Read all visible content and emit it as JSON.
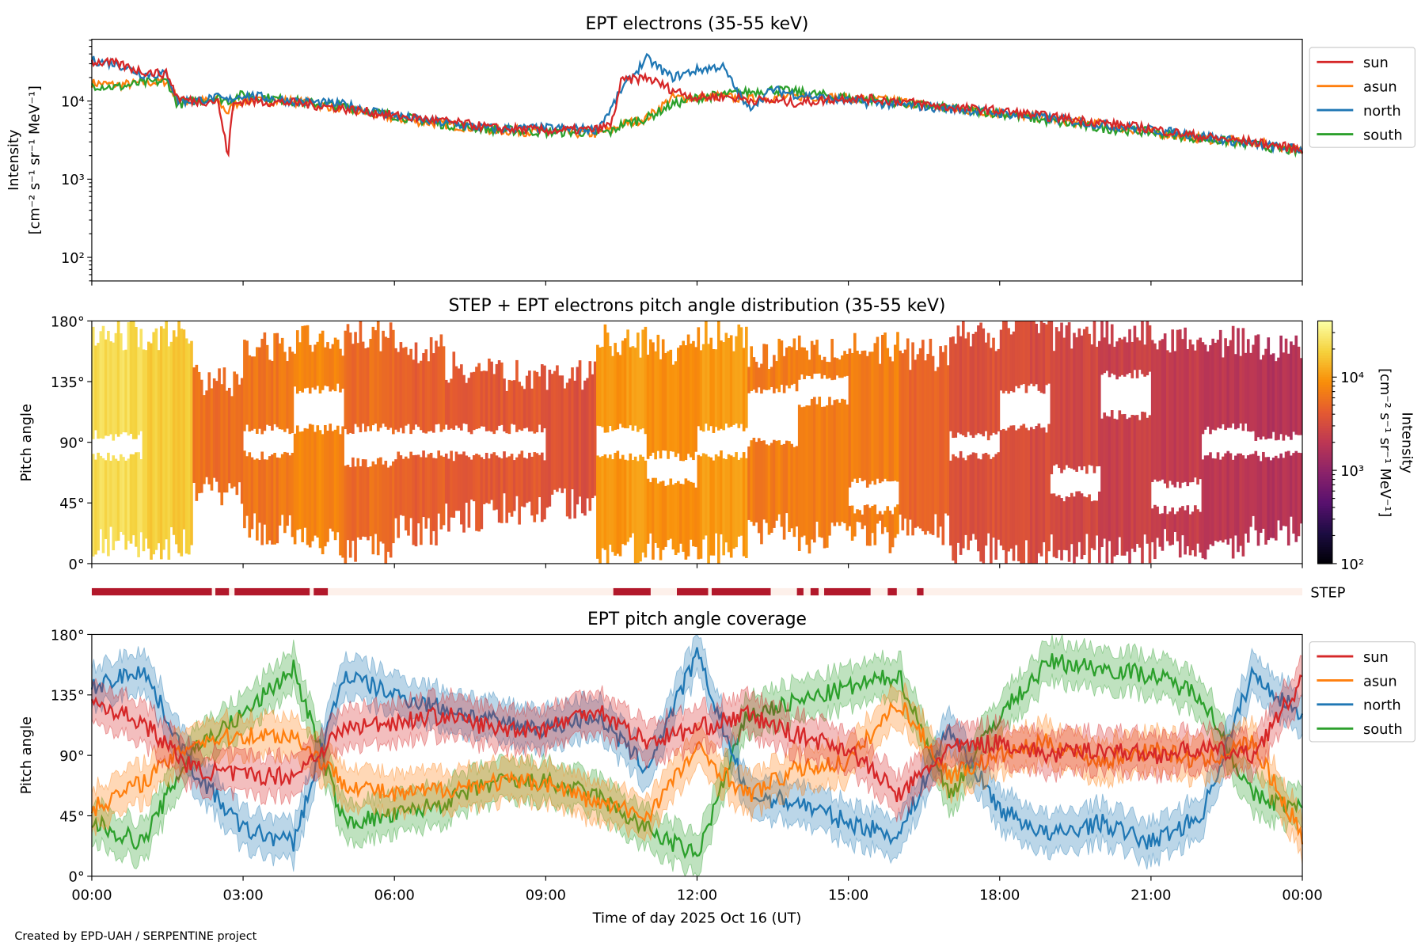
{
  "footer": "Created by EPD-UAH / SERPENTINE project",
  "colors": {
    "sun": "#d62728",
    "asun": "#ff7f0e",
    "north": "#1f77b4",
    "south": "#2ca02c",
    "step_on": "#b2182b",
    "step_off": "#fdf0ea",
    "colormap": "inferno"
  },
  "chart_data": [
    {
      "type": "line",
      "title": "EPT electrons (35-55 keV)",
      "ylabel": [
        "Intensity",
        "[cm⁻² s⁻¹ sr⁻¹ MeV⁻¹]"
      ],
      "yscale": "log",
      "ylim": [
        50,
        62000
      ],
      "yticks": [
        "10²",
        "10³",
        "10⁴"
      ],
      "xlim_hours": [
        0,
        24
      ],
      "legend": "outside-right",
      "x_hours": [
        0,
        0.5,
        1,
        1.5,
        1.7,
        2,
        2.5,
        2.7,
        2.8,
        3,
        4,
        5,
        6,
        7,
        8,
        9,
        10,
        10.3,
        10.5,
        11,
        11.5,
        12,
        12.5,
        13,
        13.5,
        14,
        15,
        16,
        17,
        18,
        19,
        20,
        21,
        22,
        23,
        24
      ],
      "series": [
        {
          "name": "sun",
          "values": [
            32000,
            30000,
            24000,
            22000,
            11000,
            10000,
            10000,
            2000,
            9000,
            10000,
            9500,
            8000,
            6500,
            5500,
            4500,
            4200,
            4300,
            5000,
            18000,
            20000,
            14000,
            11000,
            11500,
            10500,
            10000,
            9500,
            11000,
            10000,
            8300,
            7500,
            6300,
            5300,
            4400,
            3500,
            3000,
            2400
          ]
        },
        {
          "name": "asun",
          "values": [
            17000,
            16000,
            17000,
            18000,
            10000,
            10000,
            10000,
            7000,
            9000,
            10000,
            10000,
            8000,
            6000,
            5000,
            4200,
            4000,
            3800,
            4300,
            5000,
            6000,
            11000,
            11000,
            11500,
            10500,
            11000,
            11500,
            11000,
            10000,
            8000,
            7000,
            6000,
            5000,
            4000,
            3300,
            3000,
            2300
          ]
        },
        {
          "name": "north",
          "values": [
            33000,
            30000,
            22000,
            22000,
            10000,
            10000,
            11000,
            10000,
            11000,
            12000,
            10000,
            9000,
            6500,
            5200,
            4400,
            4500,
            4300,
            8000,
            14000,
            35000,
            20000,
            25000,
            28000,
            8000,
            14000,
            12000,
            10000,
            9000,
            8000,
            7000,
            6000,
            5000,
            4300,
            3600,
            2800,
            2400
          ]
        },
        {
          "name": "south",
          "values": [
            16000,
            15000,
            17000,
            18000,
            9000,
            10000,
            11000,
            10000,
            11000,
            12000,
            10000,
            8500,
            6500,
            5000,
            4300,
            4000,
            4000,
            4000,
            5000,
            6000,
            9000,
            11000,
            12000,
            13000,
            14000,
            13000,
            11000,
            9500,
            8000,
            7000,
            5500,
            4500,
            4000,
            3300,
            2800,
            2200
          ]
        }
      ]
    },
    {
      "type": "heatmap",
      "title": "STEP + EPT electrons pitch angle distribution (35-55 keV)",
      "ylabel": "Pitch angle",
      "ylim": [
        0,
        180
      ],
      "yticks": [
        "0°",
        "45°",
        "90°",
        "135°",
        "180°"
      ],
      "colorbar": {
        "label": [
          "Intensity",
          "[cm⁻² s⁻¹ sr⁻¹ MeV⁻¹]"
        ],
        "scale": "log",
        "range": [
          100,
          40000
        ],
        "ticks": [
          "10²",
          "10³",
          "10⁴"
        ]
      },
      "hour_bins": [
        0,
        1,
        2,
        3,
        4,
        5,
        6,
        7,
        8,
        9,
        10,
        11,
        12,
        13,
        14,
        15,
        16,
        17,
        18,
        19,
        20,
        21,
        22,
        23
      ],
      "log10_intensity": [
        4.35,
        4.25,
        3.75,
        3.8,
        3.9,
        3.75,
        3.65,
        3.6,
        3.6,
        3.55,
        4.0,
        3.95,
        4.0,
        3.85,
        3.85,
        3.85,
        3.7,
        3.55,
        3.5,
        3.45,
        3.4,
        3.35,
        3.3,
        3.25
      ],
      "coverage_deg": [
        [
          10,
          175
        ],
        [
          10,
          175
        ],
        [
          50,
          140
        ],
        [
          20,
          165
        ],
        [
          10,
          170
        ],
        [
          5,
          175
        ],
        [
          20,
          165
        ],
        [
          30,
          150
        ],
        [
          35,
          145
        ],
        [
          40,
          145
        ],
        [
          5,
          170
        ],
        [
          10,
          165
        ],
        [
          5,
          175
        ],
        [
          20,
          160
        ],
        [
          15,
          165
        ],
        [
          15,
          165
        ],
        [
          20,
          160
        ],
        [
          5,
          175
        ],
        [
          0,
          180
        ],
        [
          5,
          175
        ],
        [
          5,
          175
        ],
        [
          10,
          170
        ],
        [
          10,
          170
        ],
        [
          20,
          165
        ]
      ],
      "gap_deg": [
        [
          80,
          95
        ],
        null,
        null,
        [
          80,
          100
        ],
        [
          100,
          130
        ],
        [
          75,
          100
        ],
        [
          80,
          100
        ],
        [
          80,
          100
        ],
        [
          80,
          100
        ],
        null,
        [
          80,
          100
        ],
        [
          60,
          80
        ],
        [
          80,
          100
        ],
        [
          90,
          130
        ],
        [
          120,
          140
        ],
        [
          40,
          60
        ],
        null,
        [
          80,
          95
        ],
        [
          100,
          130
        ],
        [
          50,
          70
        ],
        [
          110,
          140
        ],
        [
          40,
          60
        ],
        [
          80,
          100
        ],
        [
          80,
          95
        ]
      ]
    },
    {
      "type": "timeline",
      "label": "STEP",
      "on_intervals_hours": [
        [
          0,
          2.38
        ],
        [
          2.45,
          2.72
        ],
        [
          2.83,
          4.32
        ],
        [
          4.4,
          4.68
        ],
        [
          10.34,
          11.08
        ],
        [
          11.6,
          12.22
        ],
        [
          12.29,
          13.46
        ],
        [
          13.98,
          14.11
        ],
        [
          14.25,
          14.41
        ],
        [
          14.52,
          15.44
        ],
        [
          15.78,
          15.96
        ],
        [
          16.36,
          16.49
        ]
      ]
    },
    {
      "type": "line",
      "title": "EPT pitch angle coverage",
      "ylabel": "Pitch angle",
      "xlabel": "Time of day 2025 Oct 16 (UT)",
      "ylim": [
        0,
        180
      ],
      "yticks": [
        "0°",
        "45°",
        "90°",
        "135°",
        "180°"
      ],
      "xticks": [
        "00:00",
        "03:00",
        "06:00",
        "09:00",
        "12:00",
        "15:00",
        "18:00",
        "21:00",
        "00:00"
      ],
      "legend": "outside-right",
      "band_halfwidth_deg": 15,
      "x_hours": [
        0,
        1,
        2,
        3,
        4,
        5,
        6,
        7,
        8,
        9,
        10,
        11,
        12,
        13,
        14,
        15,
        16,
        17,
        18,
        19,
        20,
        21,
        22,
        23,
        24
      ],
      "series": [
        {
          "name": "sun",
          "values": [
            130,
            115,
            80,
            75,
            75,
            110,
            115,
            120,
            110,
            110,
            125,
            100,
            110,
            120,
            105,
            95,
            60,
            95,
            100,
            90,
            95,
            90,
            95,
            90,
            145
          ]
        },
        {
          "name": "asun",
          "values": [
            50,
            70,
            100,
            105,
            105,
            70,
            60,
            65,
            70,
            70,
            55,
            45,
            95,
            60,
            80,
            85,
            130,
            75,
            90,
            100,
            85,
            95,
            85,
            100,
            30
          ]
        },
        {
          "name": "north",
          "values": [
            140,
            155,
            80,
            35,
            25,
            150,
            135,
            125,
            115,
            110,
            120,
            80,
            165,
            60,
            55,
            40,
            30,
            110,
            50,
            30,
            40,
            25,
            45,
            150,
            120
          ]
        },
        {
          "name": "south",
          "values": [
            40,
            25,
            95,
            120,
            155,
            40,
            45,
            55,
            70,
            70,
            60,
            35,
            15,
            120,
            130,
            140,
            150,
            60,
            120,
            160,
            155,
            150,
            135,
            60,
            50
          ]
        }
      ]
    }
  ]
}
